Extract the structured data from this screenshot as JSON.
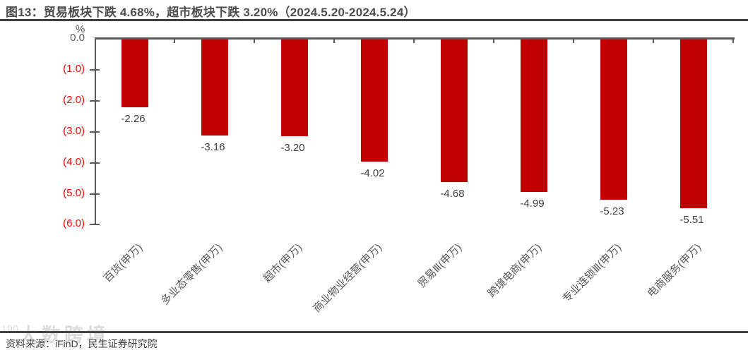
{
  "title": "图13：贸易板块下跌 4.68%，超市板块下跌 3.20%（2024.5.20-2024.5.24）",
  "unit_label": "%",
  "source": "资料来源：iFinD，民生证券研究院",
  "watermark": {
    "logo": "100",
    "text": "大数跨境"
  },
  "colors": {
    "bar": "#c00000",
    "axis": "#595959",
    "zero_tick_label": "#595959",
    "negative_tick_label": "#ff0000",
    "value_label": "#3f3f3f",
    "category_label": "#595959",
    "title_text": "#4d4d4d",
    "rule": "#404040"
  },
  "chart_data": {
    "type": "bar",
    "title": "图13：贸易板块下跌 4.68%，超市板块下跌 3.20%（2024.5.20-2024.5.24）",
    "categories": [
      "百货(申万)",
      "多业态零售(申万)",
      "超市(申万)",
      "商业物业经营(申万)",
      "贸易Ⅲ(申万)",
      "跨境电商(申万)",
      "专业连锁Ⅲ(申万)",
      "电商服务(申万)"
    ],
    "values": [
      -2.26,
      -3.16,
      -3.2,
      -4.02,
      -4.68,
      -4.99,
      -5.23,
      -5.51
    ],
    "value_labels": [
      "-2.26",
      "-3.16",
      "-3.20",
      "-4.02",
      "-4.68",
      "-4.99",
      "-5.23",
      "-5.51"
    ],
    "xlabel": "",
    "ylabel": "%",
    "ylim": [
      -6.0,
      0.0
    ],
    "yticks": [
      "0.0",
      "(1.0)",
      "(2.0)",
      "(3.0)",
      "(4.0)",
      "(5.0)",
      "(6.0)"
    ],
    "grid": false,
    "legend": "none",
    "bar_orientation": "vertical-negative-from-zero-top-axis"
  }
}
